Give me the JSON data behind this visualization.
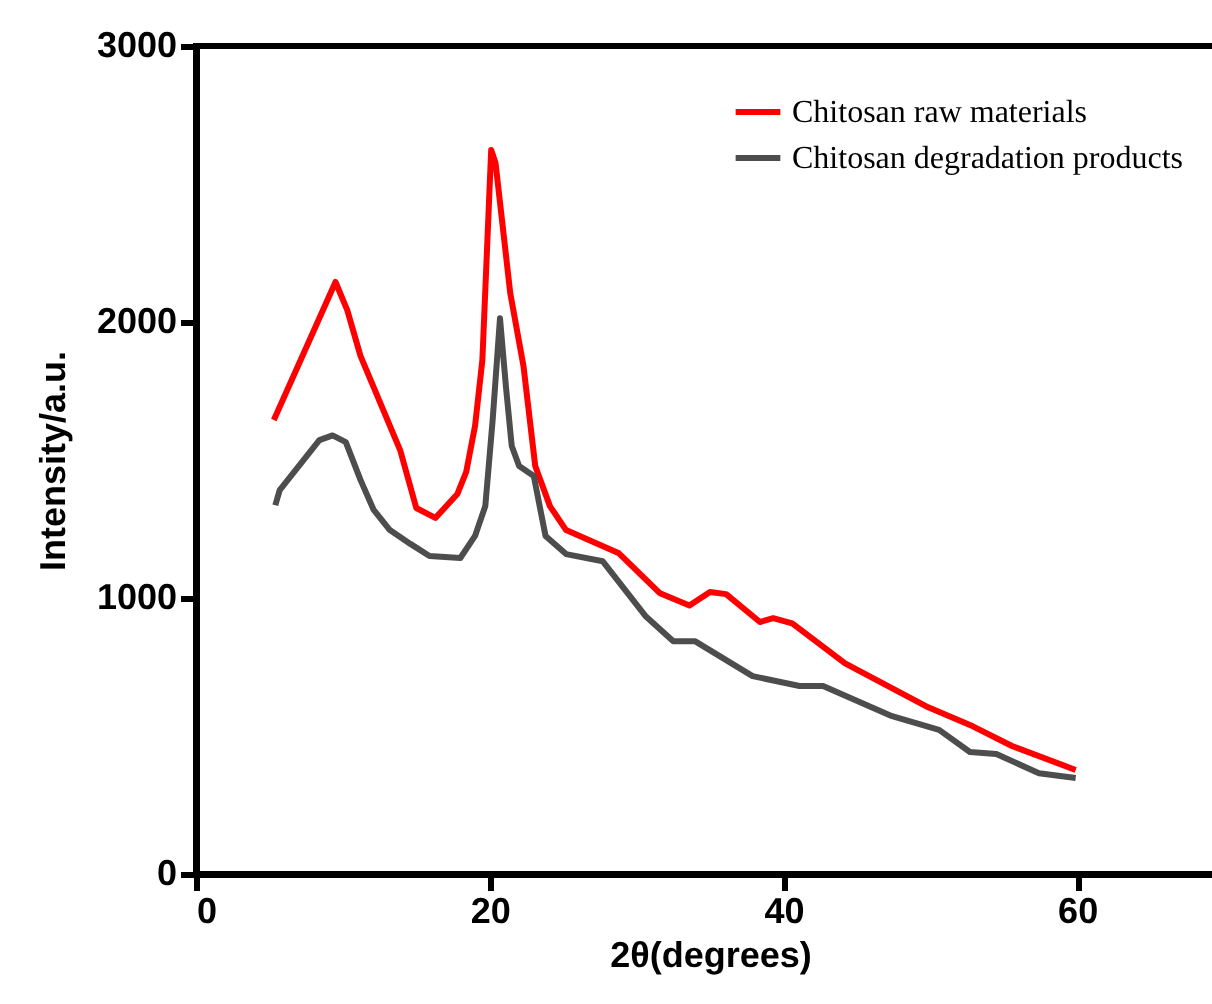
{
  "chart_data": {
    "type": "line",
    "xlabel": "2θ(degrees)",
    "ylabel": "Intensity/a.u.",
    "xlim": [
      0,
      70
    ],
    "xticks": [
      0,
      20,
      40,
      60
    ],
    "ylim": [
      0,
      3000
    ],
    "yticks": [
      0,
      1000,
      2000,
      3000
    ],
    "legend": "top right",
    "grid": false,
    "series": [
      {
        "name": "Chitosan raw materials",
        "color": "#ff0000",
        "x": [
          5.3,
          9.5,
          10.3,
          11.2,
          13.9,
          15,
          16.3,
          17.8,
          18.4,
          19,
          19.5,
          20.1,
          20.4,
          21.4,
          22.3,
          23.1,
          24.1,
          25.2,
          28.8,
          31.6,
          33.6,
          35,
          36.1,
          38.4,
          39.3,
          40.6,
          44.2,
          49.7,
          52.9,
          55.6,
          59.9
        ],
        "values": [
          1645,
          2145,
          2043,
          1877,
          1536,
          1326,
          1290,
          1377,
          1457,
          1623,
          1862,
          2623,
          2575,
          2104,
          1840,
          1478,
          1333,
          1246,
          1162,
          1017,
          973,
          1022,
          1014,
          913,
          927,
          908,
          763,
          608,
          535,
          463,
          377
        ]
      },
      {
        "name": "Chitosan degradation products",
        "color": "#4d4d4d",
        "x": [
          5.4,
          5.7,
          8.4,
          9.3,
          10.2,
          11.2,
          12.1,
          13.2,
          14.6,
          15.9,
          18,
          19,
          19.7,
          20.2,
          20.7,
          21.1,
          21.5,
          22,
          23,
          23.8,
          25.2,
          27.7,
          30.6,
          32.5,
          34,
          37.9,
          41.1,
          42.7,
          47.4,
          50.6,
          52.7,
          54.5,
          57.4,
          59.9
        ],
        "values": [
          1336,
          1391,
          1572,
          1589,
          1565,
          1428,
          1319,
          1246,
          1196,
          1152,
          1145,
          1225,
          1333,
          1645,
          2014,
          1768,
          1551,
          1478,
          1442,
          1225,
          1159,
          1133,
          935,
          843,
          843,
          717,
          681,
          681,
          572,
          522,
          442,
          435,
          365,
          348
        ]
      }
    ]
  }
}
